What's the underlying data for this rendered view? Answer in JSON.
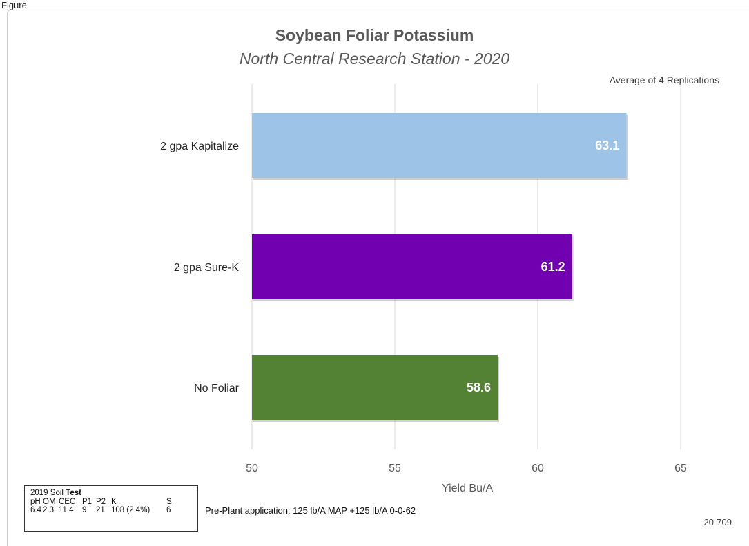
{
  "page_label": "Figure",
  "chart_data": {
    "type": "bar",
    "orientation": "horizontal",
    "title": "Soybean Foliar Potassium",
    "subtitle": "North Central Research Station - 2020",
    "annotation": "Average of 4 Replications",
    "xlabel": "Yield Bu/A",
    "categories": [
      "2 gpa Kapitalize",
      "2 gpa Sure-K",
      "No Foliar"
    ],
    "values": [
      63.1,
      61.2,
      58.6
    ],
    "value_labels": [
      "63.1",
      "61.2",
      "58.6"
    ],
    "bar_colors": [
      "#9dc3e6",
      "#7100b0",
      "#548235"
    ],
    "xlim": [
      50,
      65
    ],
    "xticks": [
      50,
      55,
      60,
      65
    ],
    "xtick_labels": [
      "50",
      "55",
      "60",
      "65"
    ],
    "grid": "vertical"
  },
  "soil_test": {
    "title_prefix": "2019 Soil",
    "title_bold": "Test",
    "headers": [
      "pH",
      "OM",
      "CEC",
      "P1",
      "P2",
      "K",
      "S"
    ],
    "values": [
      "6.4",
      "2.3",
      "11.4",
      "9",
      "21",
      "108 (2.4%)",
      "6"
    ]
  },
  "preplant_note": "Pre-Plant application: 125 lb/A MAP +125 lb/A 0-0-62",
  "chart_code": "20-709"
}
